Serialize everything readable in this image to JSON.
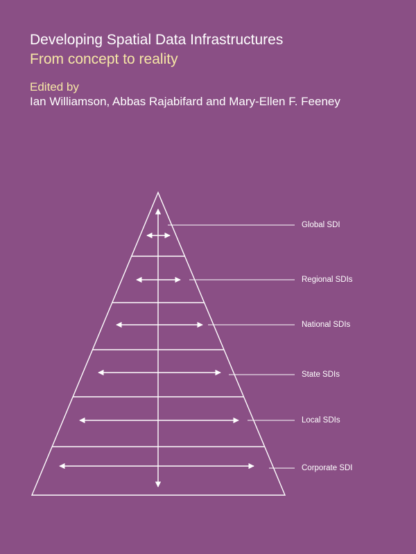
{
  "header": {
    "title": "Developing Spatial Data Infrastructures",
    "subtitle": "From concept to reality",
    "edited_by": "Edited by",
    "editors": "Ian Williamson, Abbas Rajabifard and Mary-Ellen F. Feeney"
  },
  "diagram": {
    "levels": [
      {
        "label": "Global SDI"
      },
      {
        "label": "Regional SDIs"
      },
      {
        "label": "National SDIs"
      },
      {
        "label": "State SDIs"
      },
      {
        "label": "Local SDIs"
      },
      {
        "label": "Corporate SDI"
      }
    ]
  }
}
